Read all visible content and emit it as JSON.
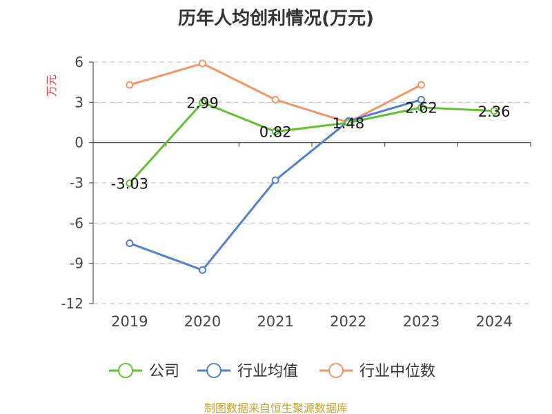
{
  "title": "历年人均创利情况(万元)",
  "source": "制图数据来自恒生聚源数据库",
  "colors": {
    "company": "#5ec12f",
    "industry_avg": "#4e7fd6",
    "industry_median": "#f59461",
    "unit_label": "#e23a3a",
    "data_label": "#111111",
    "axis": "#333333",
    "grid": "#c8c8c8",
    "tick_label": "#444444"
  },
  "chart_data": {
    "type": "line",
    "title": "历年人均创利情况(万元)",
    "ylabel": "万元",
    "xlabel": "",
    "categories": [
      "2019",
      "2020",
      "2021",
      "2022",
      "2023",
      "2024"
    ],
    "ylim": [
      -12,
      6
    ],
    "yticks": [
      6,
      3,
      0,
      -3,
      -6,
      -9,
      -12
    ],
    "grid": true,
    "legend_position": "bottom",
    "series": [
      {
        "name": "公司",
        "key": "company",
        "values": [
          -3.03,
          2.99,
          0.82,
          1.48,
          2.62,
          2.36
        ],
        "data_labels": [
          "-3.03",
          "2.99",
          "0.82",
          "1.48",
          "2.62",
          "2.36"
        ]
      },
      {
        "name": "行业均值",
        "key": "industry_avg",
        "values": [
          -7.5,
          -9.5,
          -2.8,
          1.6,
          3.2,
          null
        ]
      },
      {
        "name": "行业中位数",
        "key": "industry_median",
        "values": [
          4.3,
          5.9,
          3.2,
          1.5,
          4.3,
          null
        ]
      }
    ]
  }
}
